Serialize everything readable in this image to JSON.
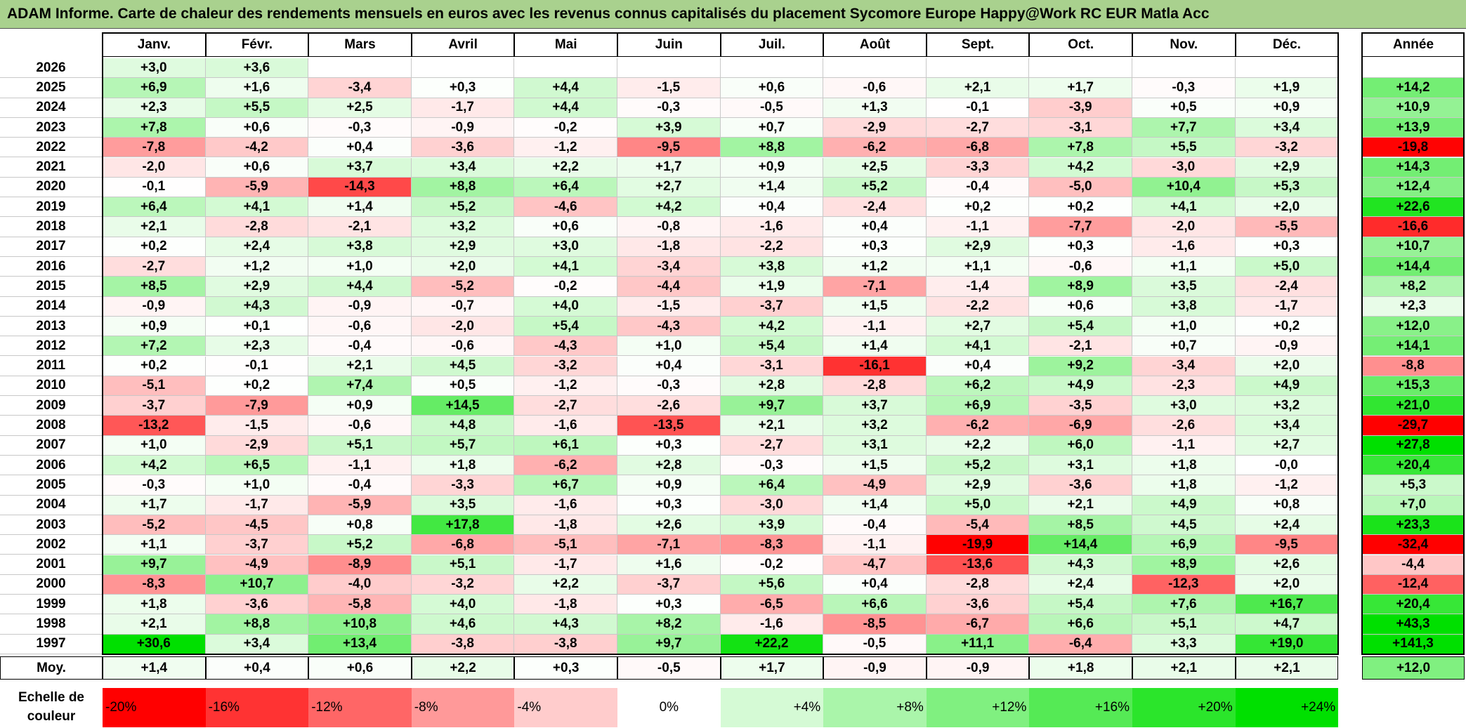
{
  "title": "ADAM Informe. Carte de chaleur des rendements mensuels en euros avec les revenus connus capitalisés du placement Sycomore Europe Happy@Work RC EUR Matla Acc",
  "chart_data": {
    "type": "heatmap",
    "months": [
      "Janv.",
      "Févr.",
      "Mars",
      "Avril",
      "Mai",
      "Juin",
      "Juil.",
      "Août",
      "Sept.",
      "Oct.",
      "Nov.",
      "Déc."
    ],
    "year_header": "Année",
    "rows": [
      {
        "year": "2026",
        "months": [
          "+3,0",
          "+3,6",
          "",
          "",
          "",
          "",
          "",
          "",
          "",
          "",
          "",
          ""
        ],
        "annual": ""
      },
      {
        "year": "2025",
        "months": [
          "+6,9",
          "+1,6",
          "-3,4",
          "+0,3",
          "+4,4",
          "-1,5",
          "+0,6",
          "-0,6",
          "+2,1",
          "+1,7",
          "-0,3",
          "+1,9"
        ],
        "annual": "+14,2"
      },
      {
        "year": "2024",
        "months": [
          "+2,3",
          "+5,5",
          "+2,5",
          "-1,7",
          "+4,4",
          "-0,3",
          "-0,5",
          "+1,3",
          "-0,1",
          "-3,9",
          "+0,5",
          "+0,9"
        ],
        "annual": "+10,9"
      },
      {
        "year": "2023",
        "months": [
          "+7,8",
          "+0,6",
          "-0,3",
          "-0,9",
          "-0,2",
          "+3,9",
          "+0,7",
          "-2,9",
          "-2,7",
          "-3,1",
          "+7,7",
          "+3,4"
        ],
        "annual": "+13,9"
      },
      {
        "year": "2022",
        "months": [
          "-7,8",
          "-4,2",
          "+0,4",
          "-3,6",
          "-1,2",
          "-9,5",
          "+8,8",
          "-6,2",
          "-6,8",
          "+7,8",
          "+5,5",
          "-3,2"
        ],
        "annual": "-19,8"
      },
      {
        "year": "2021",
        "months": [
          "-2,0",
          "+0,6",
          "+3,7",
          "+3,4",
          "+2,2",
          "+1,7",
          "+0,9",
          "+2,5",
          "-3,3",
          "+4,2",
          "-3,0",
          "+2,9"
        ],
        "annual": "+14,3"
      },
      {
        "year": "2020",
        "months": [
          "-0,1",
          "-5,9",
          "-14,3",
          "+8,8",
          "+6,4",
          "+2,7",
          "+1,4",
          "+5,2",
          "-0,4",
          "-5,0",
          "+10,4",
          "+5,3"
        ],
        "annual": "+12,4"
      },
      {
        "year": "2019",
        "months": [
          "+6,4",
          "+4,1",
          "+1,4",
          "+5,2",
          "-4,6",
          "+4,2",
          "+0,4",
          "-2,4",
          "+0,2",
          "+0,2",
          "+4,1",
          "+2,0"
        ],
        "annual": "+22,6"
      },
      {
        "year": "2018",
        "months": [
          "+2,1",
          "-2,8",
          "-2,1",
          "+3,2",
          "+0,6",
          "-0,8",
          "-1,6",
          "+0,4",
          "-1,1",
          "-7,7",
          "-2,0",
          "-5,5"
        ],
        "annual": "-16,6"
      },
      {
        "year": "2017",
        "months": [
          "+0,2",
          "+2,4",
          "+3,8",
          "+2,9",
          "+3,0",
          "-1,8",
          "-2,2",
          "+0,3",
          "+2,9",
          "+0,3",
          "-1,6",
          "+0,3"
        ],
        "annual": "+10,7"
      },
      {
        "year": "2016",
        "months": [
          "-2,7",
          "+1,2",
          "+1,0",
          "+2,0",
          "+4,1",
          "-3,4",
          "+3,8",
          "+1,2",
          "+1,1",
          "-0,6",
          "+1,1",
          "+5,0"
        ],
        "annual": "+14,4"
      },
      {
        "year": "2015",
        "months": [
          "+8,5",
          "+2,9",
          "+4,4",
          "-5,2",
          "-0,2",
          "-4,4",
          "+1,9",
          "-7,1",
          "-1,4",
          "+8,9",
          "+3,5",
          "-2,4"
        ],
        "annual": "+8,2"
      },
      {
        "year": "2014",
        "months": [
          "-0,9",
          "+4,3",
          "-0,9",
          "-0,7",
          "+4,0",
          "-1,5",
          "-3,7",
          "+1,5",
          "-2,2",
          "+0,6",
          "+3,8",
          "-1,7"
        ],
        "annual": "+2,3"
      },
      {
        "year": "2013",
        "months": [
          "+0,9",
          "+0,1",
          "-0,6",
          "-2,0",
          "+5,4",
          "-4,3",
          "+4,2",
          "-1,1",
          "+2,7",
          "+5,4",
          "+1,0",
          "+0,2"
        ],
        "annual": "+12,0"
      },
      {
        "year": "2012",
        "months": [
          "+7,2",
          "+2,3",
          "-0,4",
          "-0,6",
          "-4,3",
          "+1,0",
          "+5,4",
          "+1,4",
          "+4,1",
          "-2,1",
          "+0,7",
          "-0,9"
        ],
        "annual": "+14,1"
      },
      {
        "year": "2011",
        "months": [
          "+0,2",
          "-0,1",
          "+2,1",
          "+4,5",
          "-3,2",
          "+0,4",
          "-3,1",
          "-16,1",
          "+0,4",
          "+9,2",
          "-3,4",
          "+2,0"
        ],
        "annual": "-8,8"
      },
      {
        "year": "2010",
        "months": [
          "-5,1",
          "+0,2",
          "+7,4",
          "+0,5",
          "-1,2",
          "-0,3",
          "+2,8",
          "-2,8",
          "+6,2",
          "+4,9",
          "-2,3",
          "+4,9"
        ],
        "annual": "+15,3"
      },
      {
        "year": "2009",
        "months": [
          "-3,7",
          "-7,9",
          "+0,9",
          "+14,5",
          "-2,7",
          "-2,6",
          "+9,7",
          "+3,7",
          "+6,9",
          "-3,5",
          "+3,0",
          "+3,2"
        ],
        "annual": "+21,0"
      },
      {
        "year": "2008",
        "months": [
          "-13,2",
          "-1,5",
          "-0,6",
          "+4,8",
          "-1,6",
          "-13,5",
          "+2,1",
          "+3,2",
          "-6,2",
          "-6,9",
          "-2,6",
          "+3,4"
        ],
        "annual": "-29,7"
      },
      {
        "year": "2007",
        "months": [
          "+1,0",
          "-2,9",
          "+5,1",
          "+5,7",
          "+6,1",
          "+0,3",
          "-2,7",
          "+3,1",
          "+2,2",
          "+6,0",
          "-1,1",
          "+2,7"
        ],
        "annual": "+27,8"
      },
      {
        "year": "2006",
        "months": [
          "+4,2",
          "+6,5",
          "-1,1",
          "+1,8",
          "-6,2",
          "+2,8",
          "-0,3",
          "+1,5",
          "+5,2",
          "+3,1",
          "+1,8",
          "-0,0"
        ],
        "annual": "+20,4"
      },
      {
        "year": "2005",
        "months": [
          "-0,3",
          "+1,0",
          "-0,4",
          "-3,3",
          "+6,7",
          "+0,9",
          "+6,4",
          "-4,9",
          "+2,9",
          "-3,6",
          "+1,8",
          "-1,2"
        ],
        "annual": "+5,3"
      },
      {
        "year": "2004",
        "months": [
          "+1,7",
          "-1,7",
          "-5,9",
          "+3,5",
          "-1,6",
          "+0,3",
          "-3,0",
          "+1,4",
          "+5,0",
          "+2,1",
          "+4,9",
          "+0,8"
        ],
        "annual": "+7,0"
      },
      {
        "year": "2003",
        "months": [
          "-5,2",
          "-4,5",
          "+0,8",
          "+17,8",
          "-1,8",
          "+2,6",
          "+3,9",
          "-0,4",
          "-5,4",
          "+8,5",
          "+4,5",
          "+2,4"
        ],
        "annual": "+23,3"
      },
      {
        "year": "2002",
        "months": [
          "+1,1",
          "-3,7",
          "+5,2",
          "-6,8",
          "-5,1",
          "-7,1",
          "-8,3",
          "-1,1",
          "-19,9",
          "+14,4",
          "+6,9",
          "-9,5"
        ],
        "annual": "-32,4"
      },
      {
        "year": "2001",
        "months": [
          "+9,7",
          "-4,9",
          "-8,9",
          "+5,1",
          "-1,7",
          "+1,6",
          "-0,2",
          "-4,7",
          "-13,6",
          "+4,3",
          "+8,9",
          "+2,6"
        ],
        "annual": "-4,4"
      },
      {
        "year": "2000",
        "months": [
          "-8,3",
          "+10,7",
          "-4,0",
          "-3,2",
          "+2,2",
          "-3,7",
          "+5,6",
          "+0,4",
          "-2,8",
          "+2,4",
          "-12,3",
          "+2,0"
        ],
        "annual": "-12,4"
      },
      {
        "year": "1999",
        "months": [
          "+1,8",
          "-3,6",
          "-5,8",
          "+4,0",
          "-1,8",
          "+0,3",
          "-6,5",
          "+6,6",
          "-3,6",
          "+5,4",
          "+7,6",
          "+16,7"
        ],
        "annual": "+20,4"
      },
      {
        "year": "1998",
        "months": [
          "+2,1",
          "+8,8",
          "+10,8",
          "+4,6",
          "+4,3",
          "+8,2",
          "-1,6",
          "-8,5",
          "-6,7",
          "+6,6",
          "+5,1",
          "+4,7"
        ],
        "annual": "+43,3"
      },
      {
        "year": "1997",
        "months": [
          "+30,6",
          "+3,4",
          "+13,4",
          "-3,8",
          "-3,8",
          "+9,7",
          "+22,2",
          "-0,5",
          "+11,1",
          "-6,4",
          "+3,3",
          "+19,0"
        ],
        "annual": "+141,3"
      }
    ],
    "average": {
      "label": "Moy.",
      "months": [
        "+1,4",
        "+0,4",
        "+0,6",
        "+2,2",
        "+0,3",
        "-0,5",
        "+1,7",
        "-0,9",
        "-0,9",
        "+1,8",
        "+2,1",
        "+2,1"
      ],
      "annual": "+12,0"
    },
    "color_scale": {
      "label": "Echelle de\ncouleur",
      "stops": [
        {
          "text": "-20%",
          "value": -20,
          "align": "left"
        },
        {
          "text": "-16%",
          "value": -16,
          "align": "left"
        },
        {
          "text": "-12%",
          "value": -12,
          "align": "left"
        },
        {
          "text": "-8%",
          "value": -8,
          "align": "left"
        },
        {
          "text": "-4%",
          "value": -4,
          "align": "left"
        },
        {
          "text": "0%",
          "value": 0,
          "align": "center"
        },
        {
          "text": "+4%",
          "value": 4,
          "align": "right"
        },
        {
          "text": "+8%",
          "value": 8,
          "align": "right"
        },
        {
          "text": "+12%",
          "value": 12,
          "align": "right"
        },
        {
          "text": "+16%",
          "value": 16,
          "align": "right"
        },
        {
          "text": "+20%",
          "value": 20,
          "align": "right"
        },
        {
          "text": "+24%",
          "value": 24,
          "align": "right"
        }
      ],
      "negative_color": "#ff0000",
      "positive_color": "#00e000",
      "neutral_color": "#ffffff",
      "range": [
        -20,
        24
      ]
    }
  }
}
